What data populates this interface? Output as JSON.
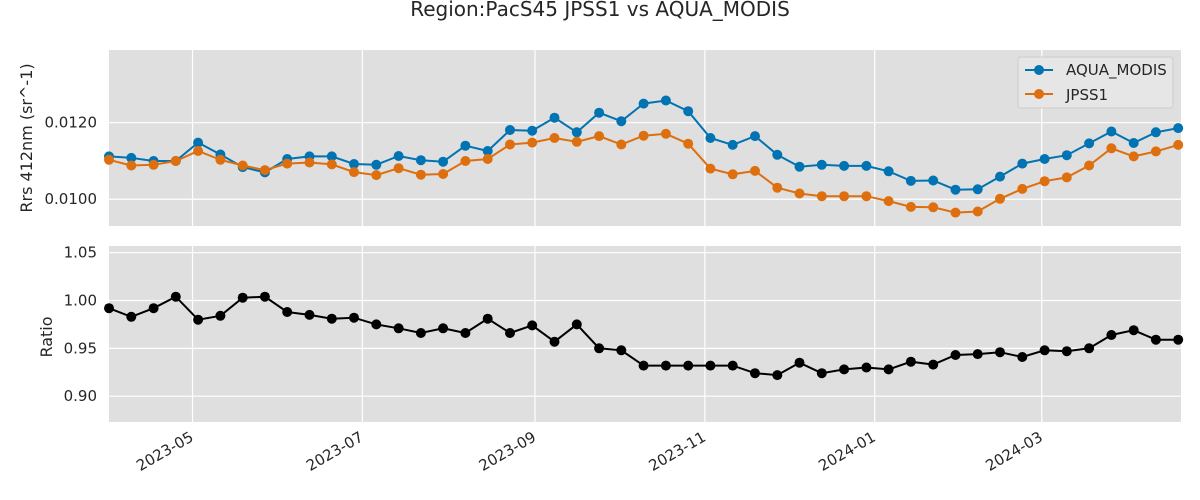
{
  "chart_data": {
    "type": "line",
    "title": "Region:PacS45 JPSS1 vs AQUA_MODIS",
    "x_dates": [
      "2023-04-01",
      "2023-04-09",
      "2023-04-17",
      "2023-04-25",
      "2023-05-03",
      "2023-05-11",
      "2023-05-19",
      "2023-05-27",
      "2023-06-04",
      "2023-06-12",
      "2023-06-20",
      "2023-06-28",
      "2023-07-06",
      "2023-07-14",
      "2023-07-22",
      "2023-07-30",
      "2023-08-07",
      "2023-08-15",
      "2023-08-23",
      "2023-08-31",
      "2023-09-08",
      "2023-09-16",
      "2023-09-24",
      "2023-10-02",
      "2023-10-10",
      "2023-10-18",
      "2023-10-26",
      "2023-11-03",
      "2023-11-11",
      "2023-11-19",
      "2023-11-27",
      "2023-12-05",
      "2023-12-13",
      "2023-12-21",
      "2023-12-29",
      "2024-01-06",
      "2024-01-14",
      "2024-01-22",
      "2024-01-30",
      "2024-02-07",
      "2024-02-15",
      "2024-02-23",
      "2024-03-02",
      "2024-03-10",
      "2024-03-18",
      "2024-03-26",
      "2024-04-03",
      "2024-04-11",
      "2024-04-19"
    ],
    "x_ticks": [
      "2023-05",
      "2023-07",
      "2023-09",
      "2023-11",
      "2024-01",
      "2024-03"
    ],
    "x_tick_dates": [
      "2023-05-01",
      "2023-07-01",
      "2023-09-01",
      "2023-11-01",
      "2024-01-01",
      "2024-03-01"
    ],
    "xlim": [
      "2023-04-01",
      "2024-04-20"
    ],
    "panels": [
      {
        "ylabel": "Rrs 412nm (sr^-1)",
        "ylim": [
          0.0093,
          0.0139
        ],
        "y_ticks": [
          0.01,
          0.012
        ],
        "y_tick_labels": [
          "0.0100",
          "0.0120"
        ],
        "legend_placement": "top-right",
        "grid": true,
        "series": [
          {
            "name": "AQUA_MODIS",
            "color": "#0173b2",
            "values": [
              0.01112,
              0.01108,
              0.011,
              0.011,
              0.01148,
              0.01117,
              0.01084,
              0.0107,
              0.01105,
              0.01112,
              0.01112,
              0.01092,
              0.0109,
              0.01113,
              0.01102,
              0.01098,
              0.0114,
              0.01126,
              0.01181,
              0.01179,
              0.01213,
              0.01175,
              0.01226,
              0.01204,
              0.0125,
              0.01258,
              0.0123,
              0.0116,
              0.01142,
              0.01165,
              0.01116,
              0.01085,
              0.0109,
              0.01087,
              0.01087,
              0.01073,
              0.01048,
              0.01049,
              0.01025,
              0.01026,
              0.01059,
              0.01093,
              0.01105,
              0.01115,
              0.01146,
              0.01177,
              0.01147,
              0.01175,
              0.01186
            ]
          },
          {
            "name": "JPSS1",
            "color": "#de6f0f",
            "values": [
              0.01103,
              0.01088,
              0.0109,
              0.011,
              0.01126,
              0.01103,
              0.01088,
              0.01076,
              0.01093,
              0.01096,
              0.01091,
              0.01071,
              0.01063,
              0.01081,
              0.01064,
              0.01066,
              0.011,
              0.01105,
              0.01143,
              0.01148,
              0.0116,
              0.0115,
              0.01165,
              0.01143,
              0.01166,
              0.01171,
              0.01145,
              0.0108,
              0.01065,
              0.01074,
              0.0103,
              0.01015,
              0.01008,
              0.01008,
              0.01008,
              0.00995,
              0.0098,
              0.00979,
              0.00965,
              0.00968,
              0.01001,
              0.01027,
              0.01047,
              0.01057,
              0.01088,
              0.01133,
              0.01112,
              0.01125,
              0.01142
            ]
          }
        ]
      },
      {
        "ylabel": "Ratio",
        "ylim": [
          0.873,
          1.057
        ],
        "y_ticks": [
          0.9,
          0.95,
          1.0,
          1.05
        ],
        "y_tick_labels": [
          "0.90",
          "0.95",
          "1.00",
          "1.05"
        ],
        "grid": true,
        "series": [
          {
            "color": "#000000",
            "values": [
              0.992,
              0.983,
              0.992,
              1.004,
              0.98,
              0.984,
              1.003,
              1.004,
              0.988,
              0.985,
              0.981,
              0.982,
              0.975,
              0.971,
              0.966,
              0.971,
              0.966,
              0.981,
              0.966,
              0.974,
              0.957,
              0.975,
              0.95,
              0.948,
              0.932,
              0.932,
              0.932,
              0.932,
              0.932,
              0.924,
              0.922,
              0.935,
              0.924,
              0.928,
              0.93,
              0.928,
              0.936,
              0.933,
              0.943,
              0.944,
              0.946,
              0.941,
              0.948,
              0.947,
              0.95,
              0.964,
              0.969,
              0.959,
              0.959
            ]
          }
        ]
      }
    ]
  }
}
